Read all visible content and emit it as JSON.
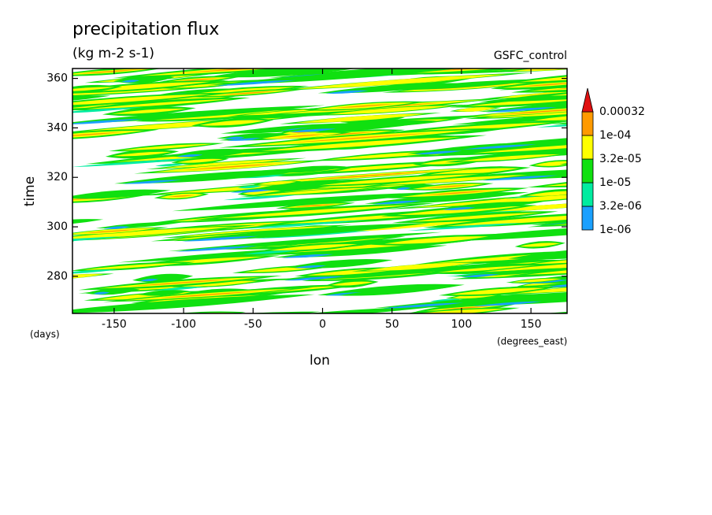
{
  "chart_data": {
    "type": "contour",
    "title": "precipitation flux",
    "subtitle": "(kg m-2 s-1)",
    "annotation": "GSFC_control",
    "xlabel": "lon",
    "ylabel": "time",
    "xunits": "(degrees_east)",
    "yunits": "(days)",
    "xlim": [
      -180,
      176
    ],
    "ylim": [
      265,
      364
    ],
    "xticks": [
      -150,
      -100,
      -50,
      0,
      50,
      100,
      150
    ],
    "yticks": [
      280,
      300,
      320,
      340,
      360
    ],
    "colorbar": {
      "levels": [
        {
          "value": 1e-06,
          "label": "1e-06"
        },
        {
          "value": 3.2e-06,
          "label": "3.2e-06"
        },
        {
          "value": 1e-05,
          "label": "1e-05"
        },
        {
          "value": 3.2e-05,
          "label": "3.2e-05"
        },
        {
          "value": 0.0001,
          "label": "1e-04"
        },
        0.00032
      ],
      "colors": [
        "#1aa0ff",
        "#00eca0",
        "#10e010",
        "#ffff00",
        "#ff9a00",
        "#e01010"
      ]
    }
  }
}
